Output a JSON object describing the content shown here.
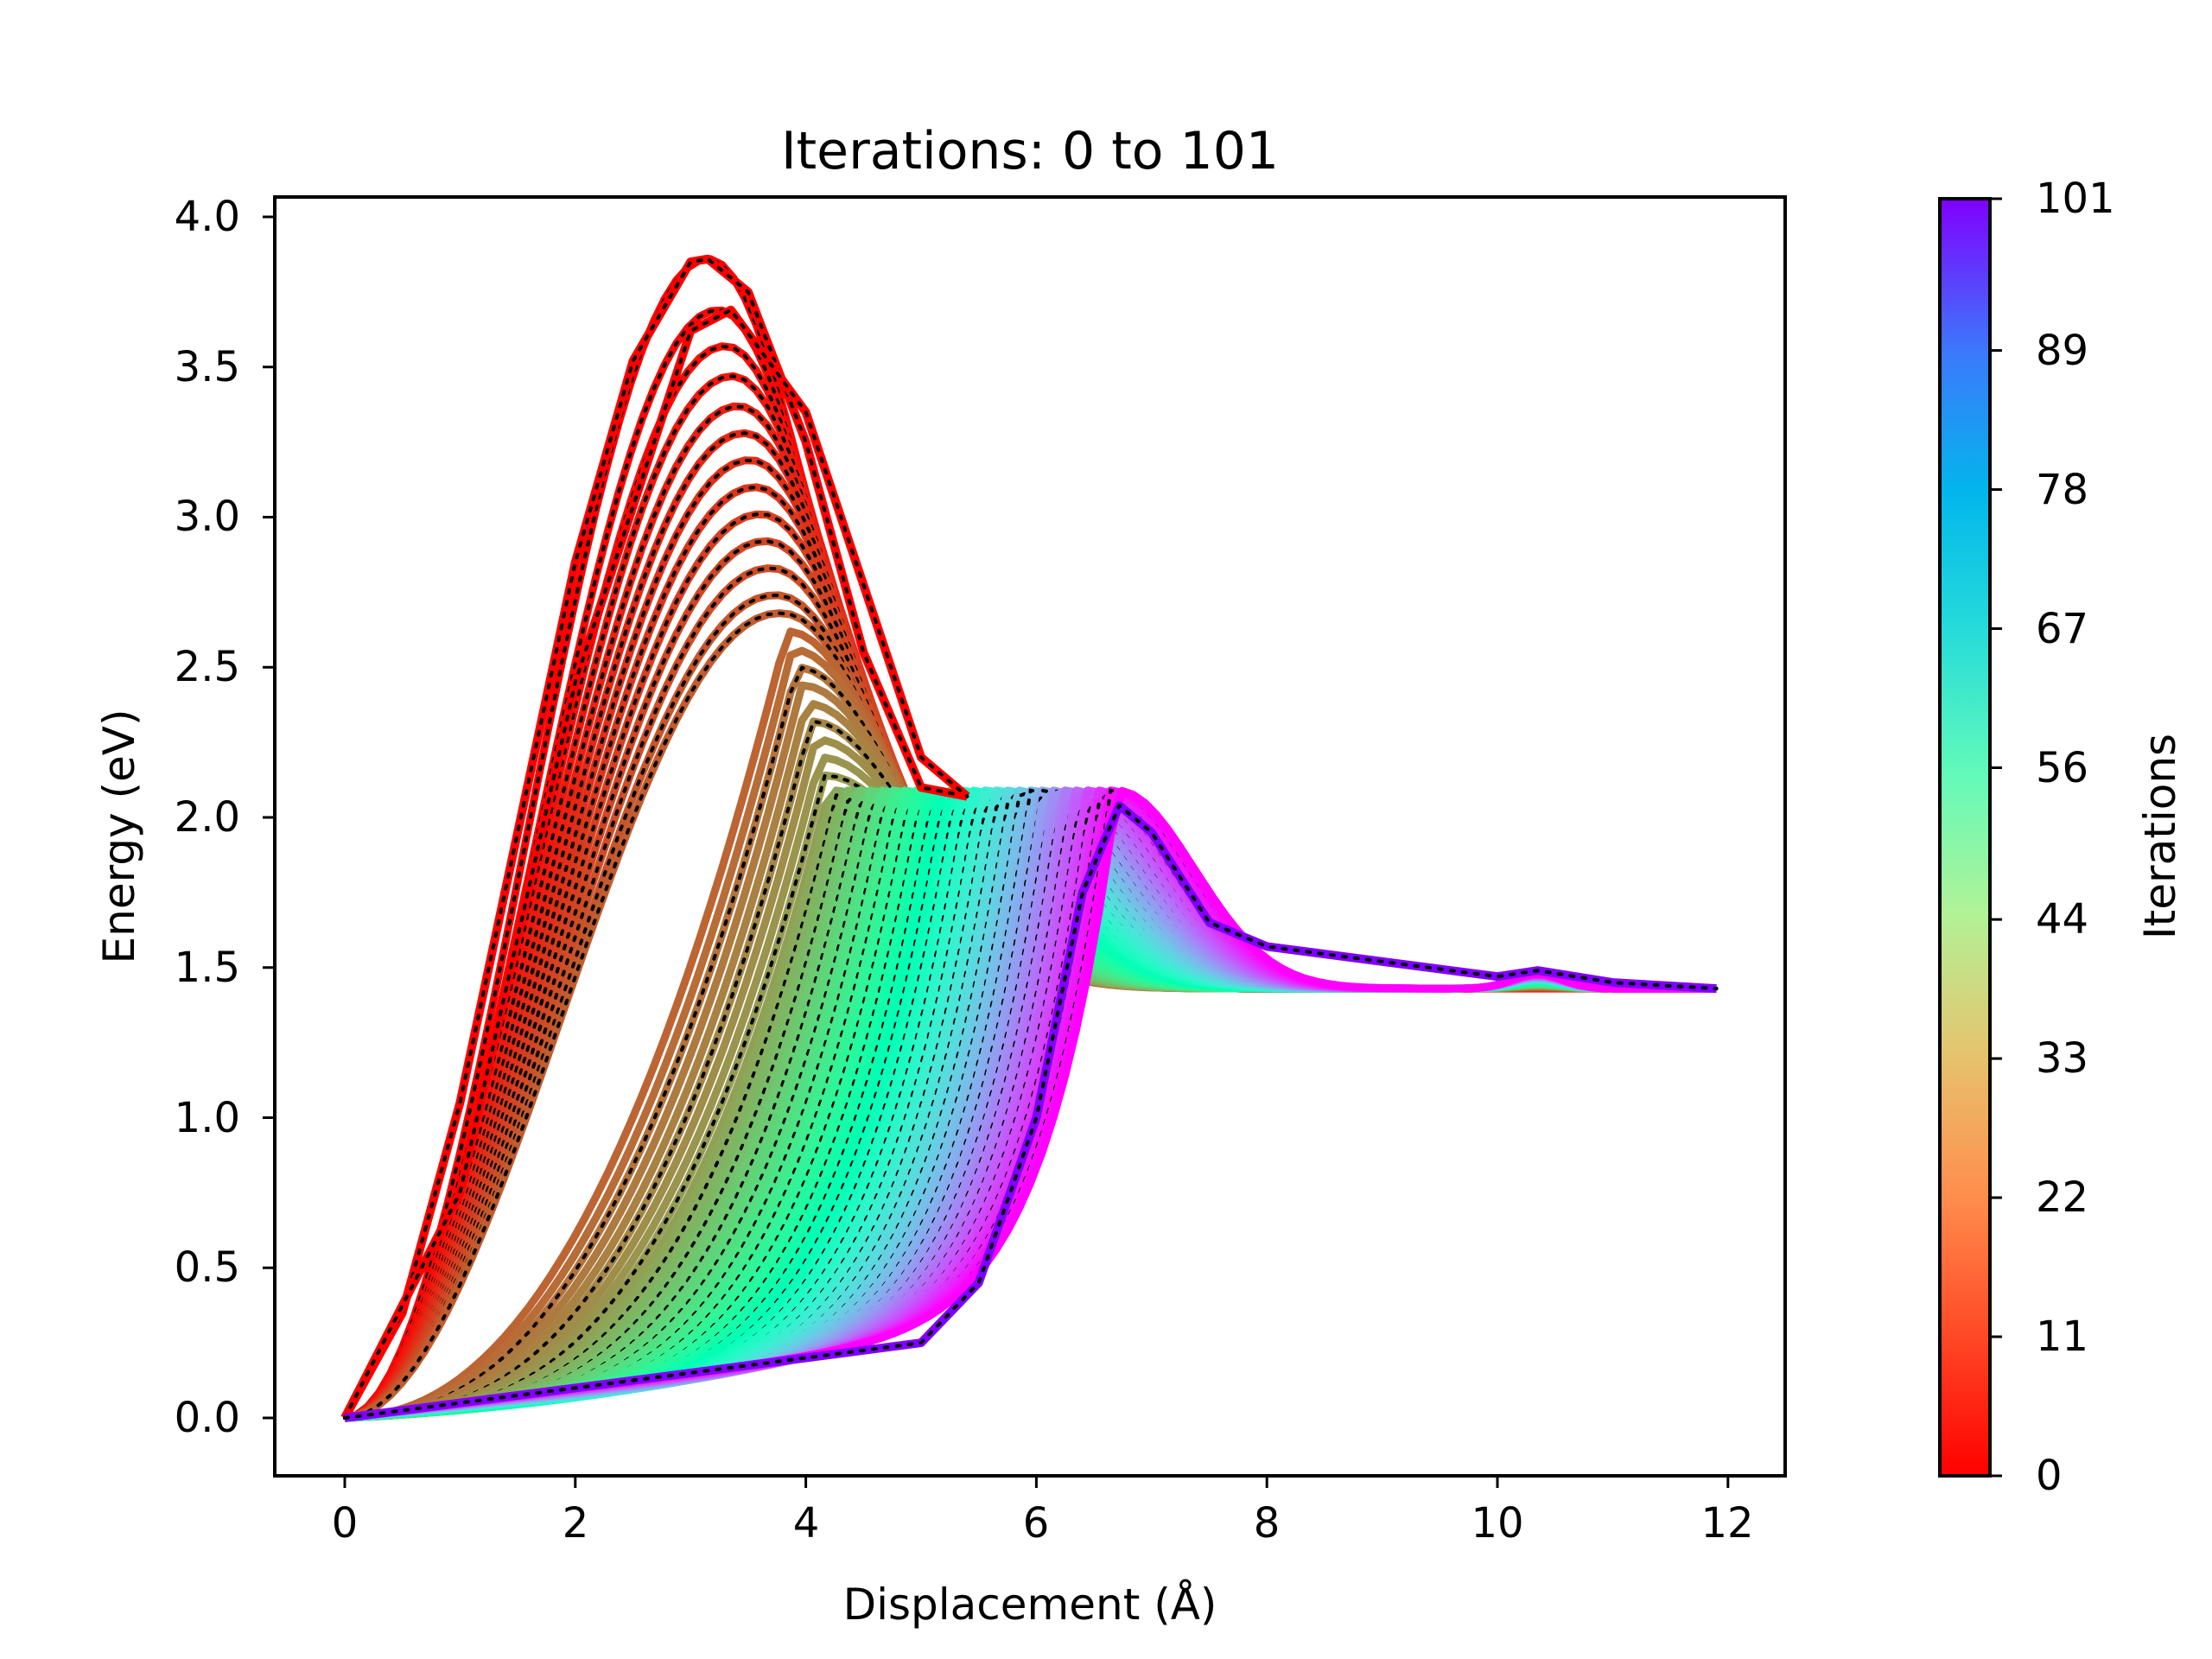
{
  "figure": {
    "title": "Iterations: 0 to 101",
    "xlabel": "Displacement (Å)",
    "ylabel": "Energy (eV)",
    "colorbar_label": "Iterations"
  },
  "axes": {
    "xticks": [
      "0",
      "2",
      "4",
      "6",
      "8",
      "10",
      "12"
    ],
    "yticks": [
      "0.0",
      "0.5",
      "1.0",
      "1.5",
      "2.0",
      "2.5",
      "3.0",
      "3.5",
      "4.0"
    ],
    "colorbar_ticks": [
      "0",
      "11",
      "22",
      "33",
      "44",
      "56",
      "67",
      "78",
      "89",
      "101"
    ]
  },
  "chart_data": {
    "type": "line",
    "title": "Iterations: 0 to 101",
    "xlabel": "Displacement (Å)",
    "ylabel": "Energy (eV)",
    "xlim": [
      -0.6,
      12.5
    ],
    "ylim": [
      -0.2,
      4.07
    ],
    "grid": false,
    "legend": "none",
    "colorbar": {
      "label": "Iterations",
      "colormap": "rainbow_r",
      "range": [
        0,
        101
      ],
      "ticks": [
        0,
        11,
        22,
        33,
        44,
        56,
        67,
        78,
        89,
        101
      ],
      "color_low": "#ff0000",
      "color_high": "#8000ff"
    },
    "series_count": 102,
    "line_style": "colored solid line per iteration with black dotted overlay and markers",
    "key_series": [
      {
        "name": "Iteration 0",
        "color": "#ff0000",
        "x": [
          0.0,
          0.5,
          1.0,
          1.5,
          2.0,
          2.5,
          3.0,
          3.15,
          3.5,
          4.0,
          4.5,
          5.0,
          5.4
        ],
        "y": [
          0.0,
          0.35,
          1.05,
          1.95,
          2.85,
          3.52,
          3.85,
          3.86,
          3.75,
          3.25,
          2.55,
          2.1,
          2.07
        ]
      },
      {
        "name": "Iteration 1",
        "color": "#ff0000",
        "x": [
          0.0,
          1.0,
          2.0,
          3.0,
          3.35,
          4.0,
          5.0,
          5.4
        ],
        "y": [
          0.0,
          0.75,
          2.45,
          3.62,
          3.69,
          3.35,
          2.2,
          2.07
        ]
      },
      {
        "name": "Iteration 101",
        "color": "#8000ff",
        "x": [
          0.0,
          1.0,
          2.0,
          3.0,
          4.0,
          5.0,
          5.5,
          6.0,
          6.4,
          6.72,
          7.0,
          7.5,
          8.0,
          9.0,
          10.0,
          10.35,
          11.0,
          11.9
        ],
        "y": [
          0.0,
          0.05,
          0.1,
          0.15,
          0.2,
          0.25,
          0.45,
          1.0,
          1.75,
          2.04,
          1.95,
          1.65,
          1.57,
          1.52,
          1.47,
          1.49,
          1.45,
          1.43
        ]
      }
    ],
    "peak_energy_by_iteration": {
      "0": 3.86,
      "1": 3.69,
      "2": 3.57,
      "3": 3.47,
      "4": 3.37,
      "5": 3.28,
      "6": 3.19,
      "7": 3.1,
      "8": 3.01,
      "9": 2.92,
      "10": 2.83,
      "11": 2.74
    },
    "annotations": {
      "plateau_energy_eV": 2.07,
      "final_energy_eV": 1.43,
      "final_displacement_A": 11.9
    }
  }
}
